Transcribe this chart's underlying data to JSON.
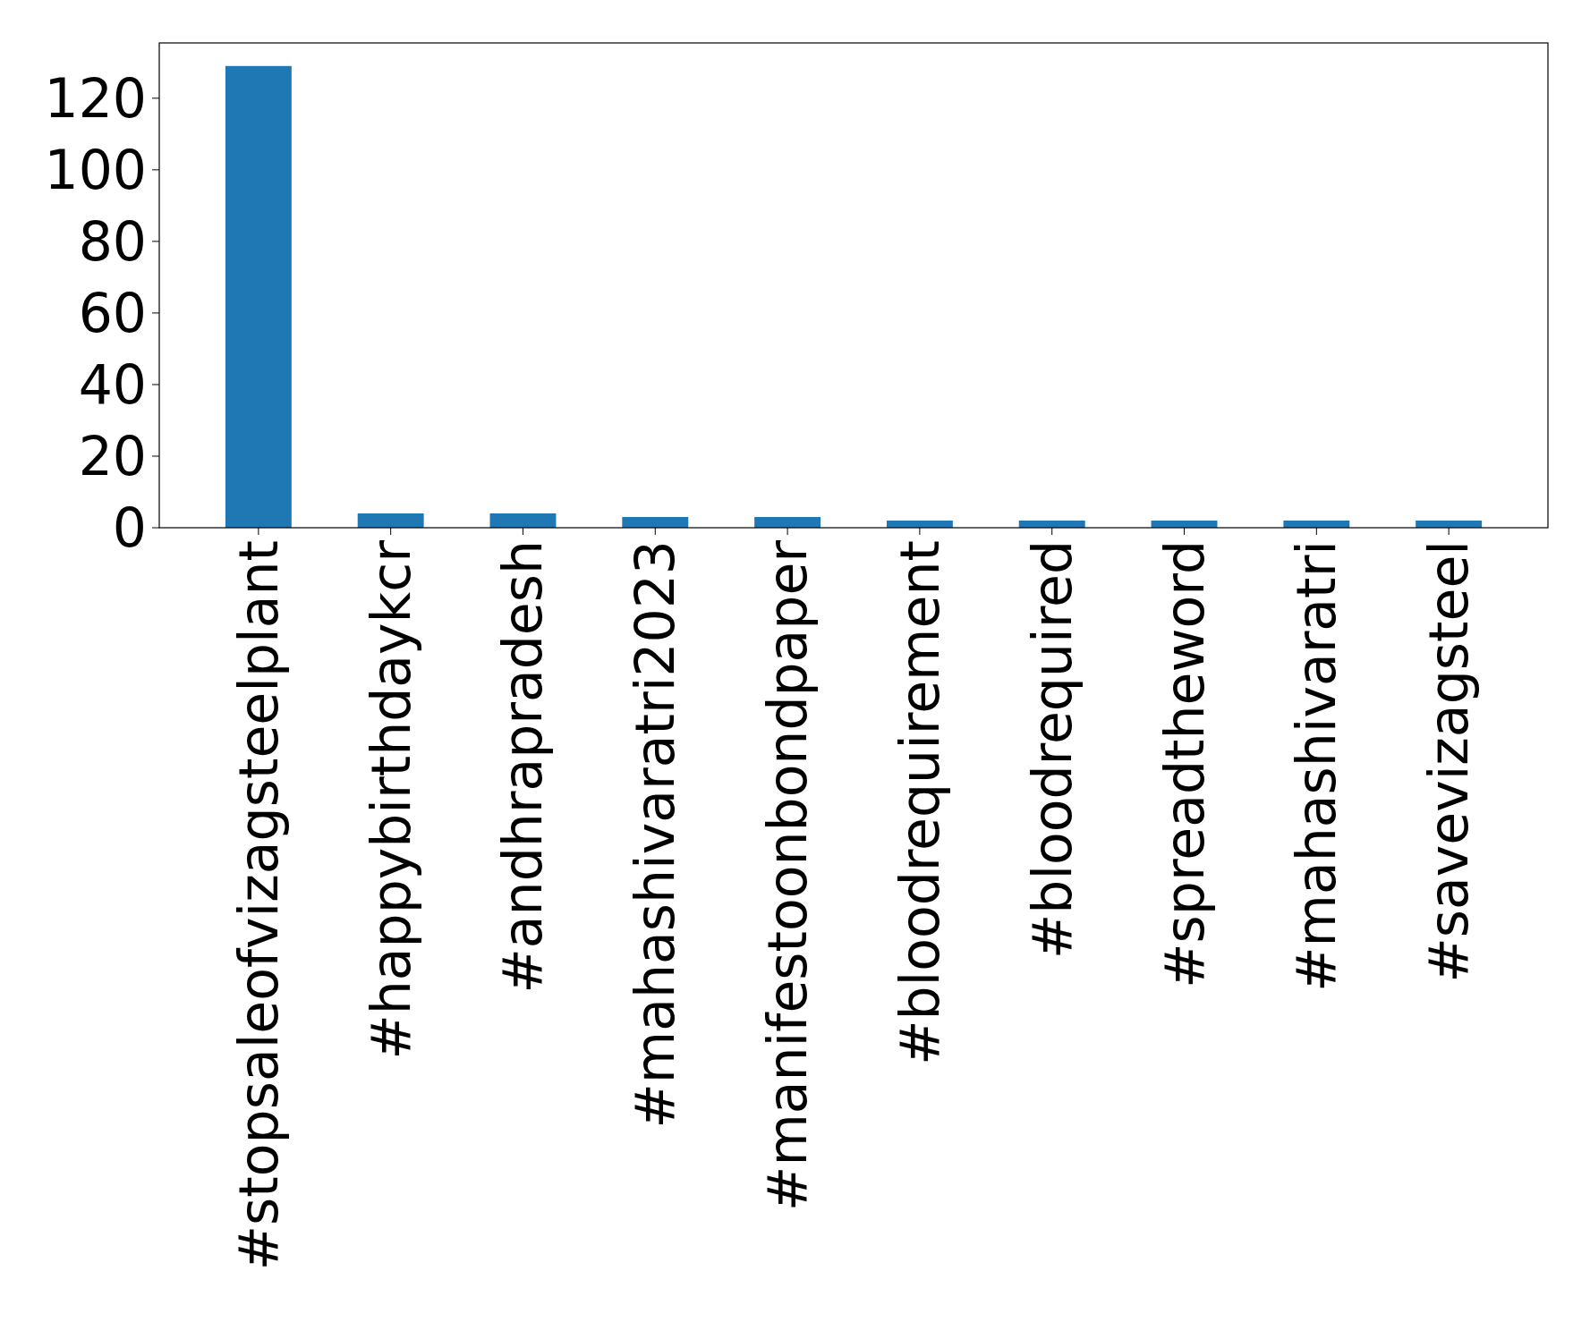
{
  "chart_data": {
    "type": "bar",
    "categories": [
      "#stopsaleofvizagsteelplant",
      "#happybirthdaykcr",
      "#andhrapradesh",
      "#mahashivaratri2023",
      "#manifestoonbondpaper",
      "#bloodrequirement",
      "#bloodrequired",
      "#spreadtheword",
      "#mahashivaratri",
      "#savevizagsteel"
    ],
    "values": [
      129,
      4,
      4,
      3,
      3,
      2,
      2,
      2,
      2,
      2
    ],
    "color": "#1f77b4",
    "ylim": [
      0,
      135.45
    ],
    "yticks": [
      0,
      20,
      40,
      60,
      80,
      100,
      120
    ],
    "grid": false
  }
}
